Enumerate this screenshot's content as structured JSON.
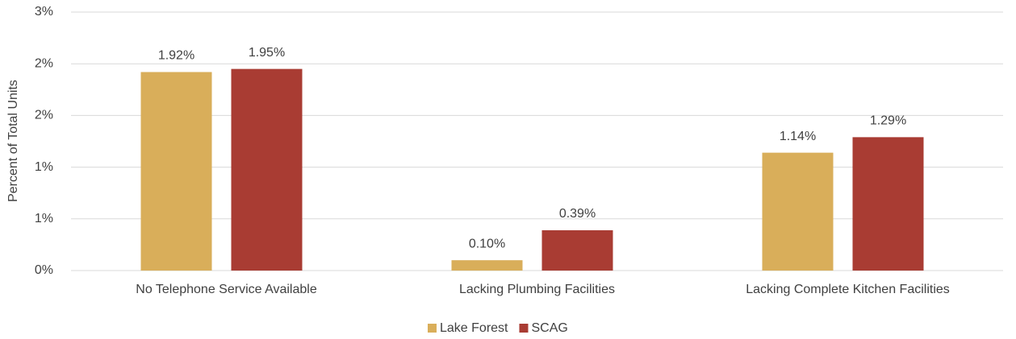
{
  "chart_data": {
    "type": "bar",
    "y_axis_label": "Percent of Total Units",
    "categories": [
      "No Telephone Service Available",
      "Lacking Plumbing Facilities",
      "Lacking Complete Kitchen Facilities"
    ],
    "series": [
      {
        "name": "Lake Forest",
        "color": "#d9ae5a",
        "values": [
          1.92,
          0.1,
          1.14
        ],
        "value_labels": [
          "1.92%",
          "0.10%",
          "1.14%"
        ]
      },
      {
        "name": "SCAG",
        "color": "#a93c33",
        "values": [
          1.95,
          0.39,
          1.29
        ],
        "value_labels": [
          "1.95%",
          "0.39%",
          "1.29%"
        ]
      }
    ],
    "ylim": [
      0,
      2.5
    ],
    "yticks": [
      {
        "value": 0,
        "label": "0%"
      },
      {
        "value": 0.5,
        "label": "1%"
      },
      {
        "value": 1,
        "label": "1%"
      },
      {
        "value": 1.5,
        "label": "2%"
      },
      {
        "value": 2,
        "label": "2%"
      },
      {
        "value": 2.5,
        "label": "3%"
      }
    ],
    "grid": true,
    "legend": "bottom"
  }
}
